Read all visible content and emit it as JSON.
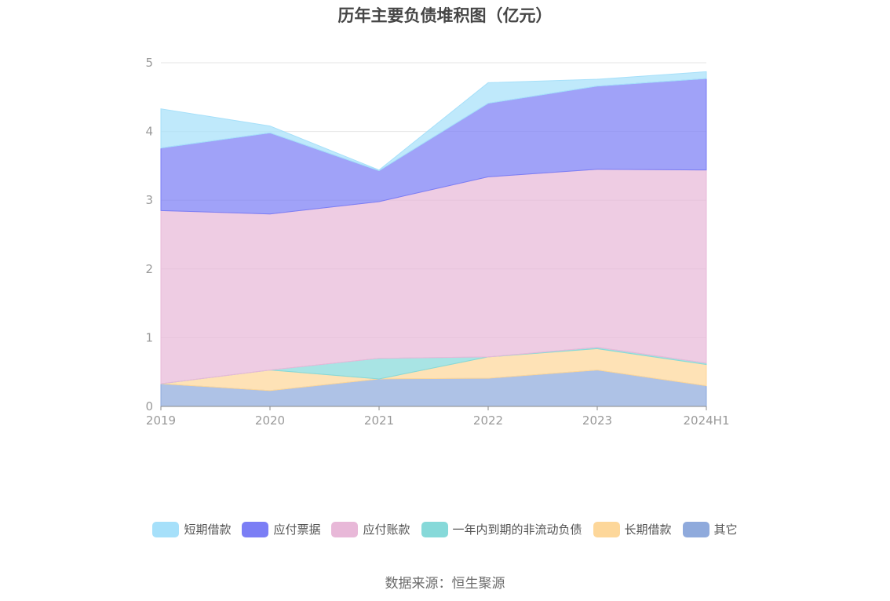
{
  "title": "历年主要负债堆积图（亿元）",
  "source": "数据来源：恒生聚源",
  "chart_data": {
    "type": "area",
    "stacked": true,
    "title": "历年主要负债堆积图（亿元）",
    "categories": [
      "2019",
      "2020",
      "2021",
      "2022",
      "2023",
      "2024H1"
    ],
    "ylim": [
      0,
      5
    ],
    "yticks": [
      "0",
      "1",
      "2",
      "3",
      "4",
      "5"
    ],
    "grid": true,
    "legend_position": "bottom",
    "series": [
      {
        "name": "其它",
        "color": "#8faadc",
        "values": [
          0.33,
          0.23,
          0.4,
          0.41,
          0.53,
          0.3
        ]
      },
      {
        "name": "长期借款",
        "color": "#fdd79a",
        "values": [
          0.0,
          0.3,
          0.0,
          0.31,
          0.31,
          0.31
        ]
      },
      {
        "name": "一年内到期的非流动负债",
        "color": "#86d9d9",
        "values": [
          0.0,
          0.0,
          0.3,
          0.0,
          0.02,
          0.02
        ]
      },
      {
        "name": "应付账款",
        "color": "#e8b8d8",
        "values": [
          2.52,
          2.27,
          2.28,
          2.62,
          2.59,
          2.81
        ]
      },
      {
        "name": "应付票据",
        "color": "#7b7ef5",
        "values": [
          0.91,
          1.18,
          0.45,
          1.07,
          1.21,
          1.33
        ]
      },
      {
        "name": "短期借款",
        "color": "#a6e0fa",
        "values": [
          0.57,
          0.1,
          0.01,
          0.3,
          0.1,
          0.1
        ]
      }
    ]
  },
  "legend": [
    {
      "label": "短期借款",
      "color": "#a6e0fa"
    },
    {
      "label": "应付票据",
      "color": "#7b7ef5"
    },
    {
      "label": "应付账款",
      "color": "#e8b8d8"
    },
    {
      "label": "一年内到期的非流动负债",
      "color": "#86d9d9"
    },
    {
      "label": "长期借款",
      "color": "#fdd79a"
    },
    {
      "label": "其它",
      "color": "#8faadc"
    }
  ]
}
